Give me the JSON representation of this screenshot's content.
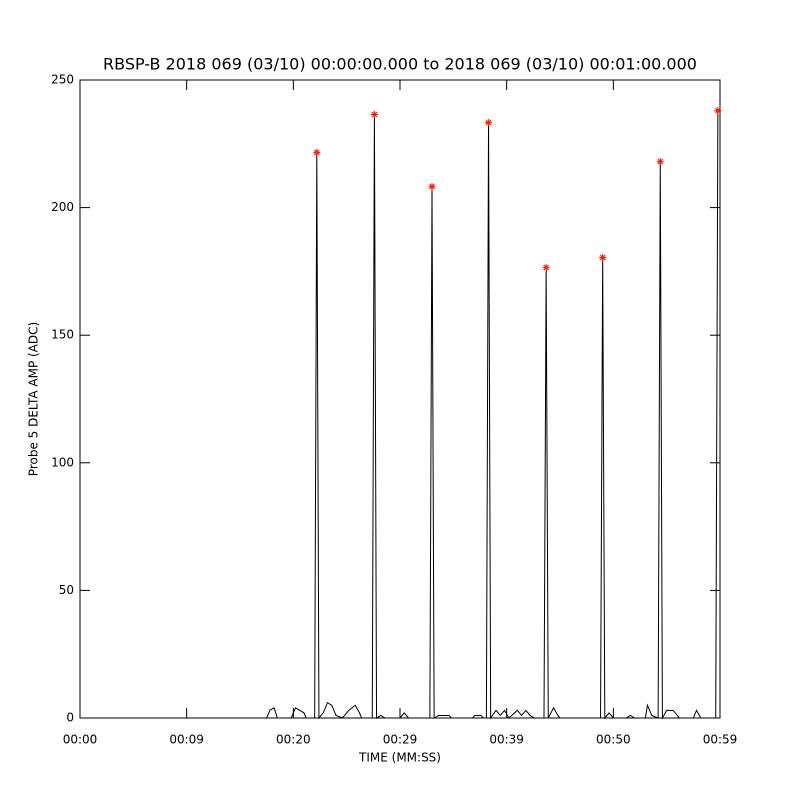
{
  "chart_data": {
    "type": "line",
    "title": "RBSP-B 2018 069 (03/10) 00:00:00.000 to 2018 069 (03/10) 00:01:00.000",
    "x_label": "TIME (MM:SS)",
    "y_label": "Probe 5 DELTA AMP (ADC)",
    "xlim": [
      0,
      60
    ],
    "xticks": [
      {
        "value": 0,
        "label": "00:00"
      },
      {
        "value": 10,
        "label": "00:09"
      },
      {
        "value": 20,
        "label": "00:20"
      },
      {
        "value": 30,
        "label": "00:29"
      },
      {
        "value": 40,
        "label": "00:39"
      },
      {
        "value": 50,
        "label": "00:50"
      },
      {
        "value": 60,
        "label": "00:59"
      }
    ],
    "ylim": [
      0,
      250
    ],
    "yticks": [
      0,
      50,
      100,
      150,
      200,
      250
    ],
    "series": [
      {
        "color": "#000000",
        "x": [
          0,
          17.5,
          17.8,
          18.2,
          18.5,
          19.8,
          20.2,
          20.6,
          21,
          21.2,
          22.0,
          22.2,
          22.4,
          22.8,
          23.2,
          23.6,
          24,
          24.6,
          25.2,
          25.8,
          26.2,
          26.4,
          27.4,
          27.6,
          27.8,
          28.2,
          28.6,
          30.0,
          30.4,
          30.8,
          32.8,
          33.0,
          33.2,
          33.6,
          34.6,
          34.8,
          36.8,
          37.0,
          37.6,
          37.8,
          38.1,
          38.3,
          38.5,
          39,
          39.4,
          39.8,
          40.2,
          41,
          41.4,
          41.8,
          42.2,
          42.6,
          43.5,
          43.7,
          43.9,
          44.4,
          44.8,
          45,
          48.8,
          49,
          49.2,
          49.6,
          50,
          51.2,
          51.6,
          52,
          53,
          53.2,
          53.6,
          54.2,
          54.4,
          54.6,
          55,
          55.6,
          56,
          56.2,
          57.5,
          57.8,
          58.2,
          59.6,
          59.8
        ],
        "values": [
          0,
          0,
          3,
          4,
          0,
          0,
          4,
          3,
          2,
          0,
          0,
          221.6,
          0,
          2,
          6,
          5,
          1,
          0,
          3,
          5,
          2,
          0,
          0,
          236.5,
          0,
          1,
          0,
          0,
          2,
          0,
          0,
          208.2,
          0,
          1,
          1,
          0,
          0,
          1,
          1,
          0,
          0,
          233.3,
          0,
          3,
          1,
          3,
          0,
          3,
          1,
          3,
          1,
          0,
          0,
          176.5,
          0,
          4,
          1,
          0,
          0,
          180.4,
          0,
          2,
          0,
          0,
          1,
          0,
          0,
          5,
          1,
          0,
          218,
          0,
          3,
          3,
          1,
          0,
          0,
          3,
          0,
          0,
          238
        ]
      },
      {
        "color": "#ff2000",
        "marker": "asterisk",
        "x": [
          22.2,
          27.6,
          33.0,
          38.3,
          43.7,
          49.0,
          54.4,
          59.8
        ],
        "values": [
          221.6,
          236.5,
          208.2,
          233.3,
          176.5,
          180.4,
          218,
          238
        ]
      }
    ]
  }
}
